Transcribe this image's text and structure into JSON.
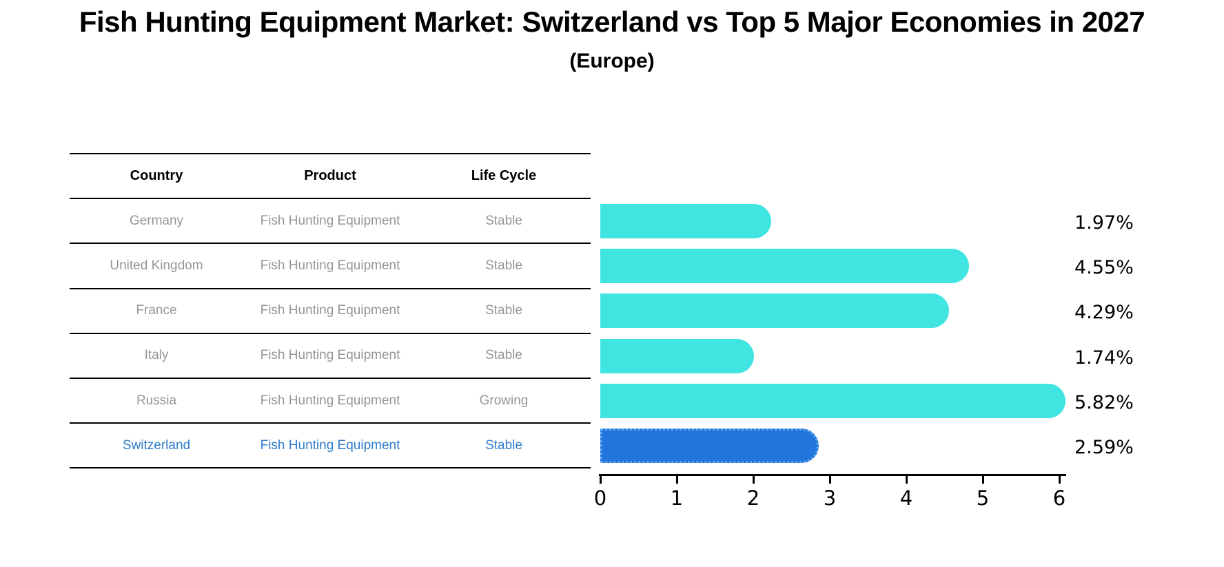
{
  "header": {
    "title": "Fish Hunting Equipment Market: Switzerland vs Top 5 Major Economies in 2027",
    "subtitle": "(Europe)"
  },
  "table": {
    "columns": [
      "Country",
      "Product",
      "Life Cycle"
    ],
    "rows": [
      {
        "country": "Germany",
        "product": "Fish Hunting Equipment",
        "life_cycle": "Stable",
        "highlighted": false
      },
      {
        "country": "United Kingdom",
        "product": "Fish Hunting Equipment",
        "life_cycle": "Stable",
        "highlighted": false
      },
      {
        "country": "France",
        "product": "Fish Hunting Equipment",
        "life_cycle": "Stable",
        "highlighted": false
      },
      {
        "country": "Italy",
        "product": "Fish Hunting Equipment",
        "life_cycle": "Stable",
        "highlighted": false
      },
      {
        "country": "Russia",
        "product": "Fish Hunting Equipment",
        "life_cycle": "Growing",
        "highlighted": false
      },
      {
        "country": "Switzerland",
        "product": "Fish Hunting Equipment",
        "life_cycle": "Stable",
        "highlighted": true
      }
    ]
  },
  "chart_data": {
    "type": "bar",
    "orientation": "horizontal",
    "title": "Fish Hunting Equipment Market: Switzerland vs Top 5 Major Economies in 2027",
    "subtitle": "(Europe)",
    "categories": [
      "Germany",
      "United Kingdom",
      "France",
      "Italy",
      "Russia",
      "Switzerland"
    ],
    "values": [
      1.97,
      4.55,
      4.29,
      1.74,
      5.82,
      2.59
    ],
    "value_labels": [
      "1.97%",
      "4.55%",
      "4.29%",
      "1.74%",
      "5.82%",
      "2.59%"
    ],
    "highlight_index": 5,
    "xlabel": "",
    "ylabel": "",
    "xlim": [
      0,
      6
    ],
    "x_ticks": [
      0,
      1,
      2,
      3,
      4,
      5,
      6
    ],
    "grid": false,
    "legend": false,
    "colors": {
      "default_bar": "#40E5E2",
      "highlight_bar": "#2176DD",
      "highlight_bar_border": "#5FA4EC",
      "highlight_text": "#2E7CCB",
      "table_text": "#969696",
      "axis": "#000000"
    }
  }
}
